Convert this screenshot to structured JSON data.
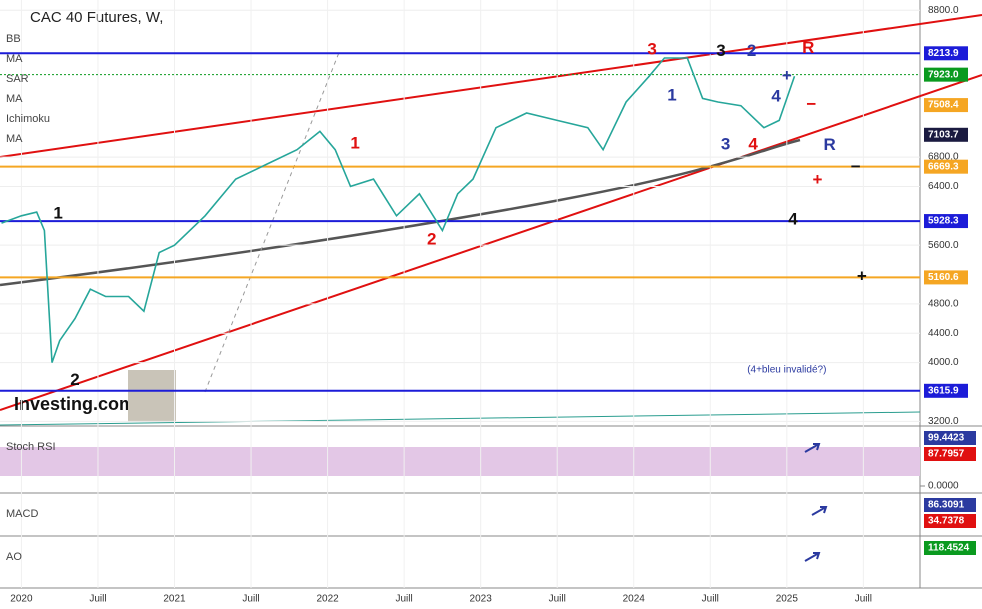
{
  "chart_data": {
    "type": "line",
    "title": "CAC 40 Futures, W,",
    "indicators": [
      "BB",
      "MA",
      "SAR",
      "MA",
      "Ichimoku",
      "MA"
    ],
    "watermark": "Investing.com",
    "x": [
      2019.87,
      2020.0,
      2020.1,
      2020.15,
      2020.2,
      2020.25,
      2020.35,
      2020.45,
      2020.55,
      2020.7,
      2020.8,
      2020.9,
      2021.0,
      2021.2,
      2021.4,
      2021.6,
      2021.8,
      2021.95,
      2022.05,
      2022.15,
      2022.3,
      2022.45,
      2022.6,
      2022.75,
      2022.85,
      2022.95,
      2023.1,
      2023.3,
      2023.5,
      2023.7,
      2023.8,
      2023.95,
      2024.1,
      2024.2,
      2024.35,
      2024.45,
      2024.55,
      2024.7,
      2024.85,
      2024.95,
      2025.05
    ],
    "series": [
      {
        "name": "CAC 40 Futures",
        "color": "#26a69a",
        "values": [
          5900,
          6000,
          6050,
          5800,
          4000,
          4300,
          4600,
          5000,
          4900,
          4900,
          4700,
          5500,
          5600,
          6000,
          6500,
          6700,
          6900,
          7150,
          6900,
          6400,
          6500,
          6000,
          6300,
          5800,
          6300,
          6500,
          7200,
          7400,
          7300,
          7200,
          6900,
          7550,
          7900,
          8150,
          8150,
          7600,
          7550,
          7500,
          7200,
          7300,
          7900
        ]
      }
    ],
    "xlim": [
      2019.86,
      2025.87
    ],
    "xticks": [
      {
        "value": 2020,
        "label": "2020"
      },
      {
        "value": 2020.5,
        "label": "Juill"
      },
      {
        "value": 2021,
        "label": "2021"
      },
      {
        "value": 2021.5,
        "label": "Juill"
      },
      {
        "value": 2022,
        "label": "2022"
      },
      {
        "value": 2022.5,
        "label": "Juill"
      },
      {
        "value": 2023,
        "label": "2023"
      },
      {
        "value": 2023.5,
        "label": "Juill"
      },
      {
        "value": 2024,
        "label": "2024"
      },
      {
        "value": 2024.5,
        "label": "Juill"
      },
      {
        "value": 2025,
        "label": "2025"
      },
      {
        "value": 2025.5,
        "label": "Juill"
      }
    ],
    "ylim": [
      3150,
      8940
    ],
    "yticks": [
      {
        "value": 8800,
        "label": "8800.0"
      },
      {
        "value": 6800,
        "label": "6800.0"
      },
      {
        "value": 6400,
        "label": "6400.0"
      },
      {
        "value": 5600,
        "label": "5600.0"
      },
      {
        "value": 4800,
        "label": "4800.0"
      },
      {
        "value": 4400,
        "label": "4400.0"
      },
      {
        "value": 4000,
        "label": "4000.0"
      },
      {
        "value": 3200,
        "label": "3200.0"
      }
    ],
    "grid": true,
    "levels": [
      {
        "value": 8213.9,
        "label": "8213.9",
        "color": "#1c1cd8",
        "line": "solid"
      },
      {
        "value": 7923.0,
        "label": "7923.0",
        "color": "#0a9a1f",
        "line": "dotted"
      },
      {
        "value": 7508.4,
        "label": "7508.4",
        "color": "#f5a623",
        "line": "none"
      },
      {
        "value": 7103.7,
        "label": "7103.7",
        "color": "#1a1a40",
        "line": "none"
      },
      {
        "value": 6669.3,
        "label": "6669.3",
        "color": "#f5a623",
        "line": "solid"
      },
      {
        "value": 5928.3,
        "label": "5928.3",
        "color": "#1c1cd8",
        "line": "solid"
      },
      {
        "value": 5160.6,
        "label": "5160.6",
        "color": "#f5a623",
        "line": "solid"
      },
      {
        "value": 3615.9,
        "label": "3615.9",
        "color": "#1c1cd8",
        "line": "solid"
      }
    ],
    "annotations": [
      {
        "text": "3",
        "x": 2024.12,
        "y": 8256,
        "color": "#e01010"
      },
      {
        "text": "3",
        "x": 2024.57,
        "y": 8240,
        "color": "#111111"
      },
      {
        "text": "2",
        "x": 2024.77,
        "y": 8240,
        "color": "#2b3aa0"
      },
      {
        "text": "R",
        "x": 2025.14,
        "y": 8280,
        "color": "#e01010"
      },
      {
        "text": "1",
        "x": 2024.25,
        "y": 7630,
        "color": "#2b3aa0"
      },
      {
        "text": "4",
        "x": 2024.93,
        "y": 7620,
        "color": "#2b3aa0"
      },
      {
        "text": "+",
        "x": 2025.0,
        "y": 7900,
        "color": "#2b3aa0"
      },
      {
        "text": "−",
        "x": 2025.16,
        "y": 7508,
        "color": "#e01010"
      },
      {
        "text": "3",
        "x": 2024.6,
        "y": 6964,
        "color": "#2b3aa0"
      },
      {
        "text": "4",
        "x": 2024.78,
        "y": 6964,
        "color": "#e01010"
      },
      {
        "text": "R",
        "x": 2025.28,
        "y": 6960,
        "color": "#2b3aa0"
      },
      {
        "text": "−",
        "x": 2025.45,
        "y": 6660,
        "color": "#111111"
      },
      {
        "text": "+",
        "x": 2025.2,
        "y": 6480,
        "color": "#e01010"
      },
      {
        "text": "1",
        "x": 2022.18,
        "y": 6980,
        "color": "#e01010"
      },
      {
        "text": "1",
        "x": 2020.24,
        "y": 6026,
        "color": "#111111"
      },
      {
        "text": "2",
        "x": 2022.68,
        "y": 5672,
        "color": "#e01010"
      },
      {
        "text": "4",
        "x": 2025.04,
        "y": 5944,
        "color": "#111111"
      },
      {
        "text": "+",
        "x": 2025.49,
        "y": 5169,
        "color": "#111111"
      },
      {
        "text": "2",
        "x": 2020.35,
        "y": 3754,
        "color": "#111111"
      },
      {
        "text": "(4+bleu invalidé?)",
        "x": 2025.0,
        "y": 3904,
        "color": "#2b3aa0"
      }
    ],
    "panels": [
      {
        "name": "Stoch RSI",
        "yticks": [
          {
            "value": 0,
            "label": "0.0000"
          }
        ],
        "labels": [
          {
            "label": "99.4423",
            "color": "#2b3aa0"
          },
          {
            "label": "87.7957",
            "color": "#e01010"
          }
        ]
      },
      {
        "name": "MACD",
        "labels": [
          {
            "label": "86.3091",
            "color": "#2b3aa0"
          },
          {
            "label": "34.7378",
            "color": "#e01010"
          }
        ]
      },
      {
        "name": "AO",
        "labels": [
          {
            "label": "118.4524",
            "color": "#0a9a1f"
          }
        ]
      }
    ]
  }
}
